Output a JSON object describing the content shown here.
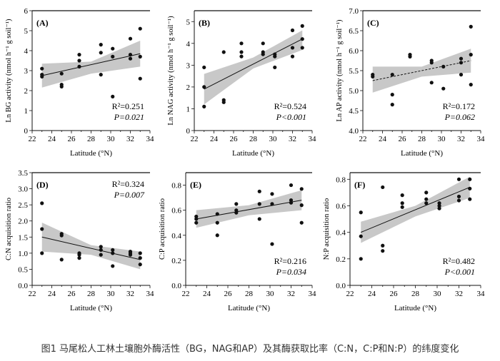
{
  "caption": "图1 马尾松人工林土壤胞外酶活性（BG，NAG和AP）及其酶获取比率（C:N，C:P和N:P）的纬度变化",
  "colors": {
    "points": "#111111",
    "band": "#c8c8c8",
    "line": "#111111"
  },
  "chart_data": [
    {
      "type": "scatter",
      "panel": "(A)",
      "ylabel": "Ln BG activity (nmol h⁻¹ g soil⁻¹)",
      "xlabel": "Latitude (°N)",
      "xlim": [
        22,
        34
      ],
      "ylim": [
        0,
        6
      ],
      "xticks": [
        22,
        24,
        26,
        28,
        30,
        32,
        34
      ],
      "yticks": [
        0,
        1,
        2,
        3,
        4,
        5,
        6
      ],
      "ytick_labels": [
        "0",
        "1",
        "2",
        "3",
        "4",
        "5",
        "6"
      ],
      "stat1": "R²=0.251",
      "stat2": "P=0.021",
      "stats_pos": "lower-right",
      "trend": {
        "line": [
          [
            23,
            2.75
          ],
          [
            33,
            3.85
          ]
        ],
        "band_upper": [
          [
            23,
            3.35
          ],
          [
            28,
            3.45
          ],
          [
            33,
            4.5
          ]
        ],
        "band_lower": [
          [
            23,
            2.15
          ],
          [
            28,
            2.85
          ],
          [
            33,
            3.2
          ]
        ],
        "dashed": false
      },
      "points": [
        [
          23,
          3.1
        ],
        [
          23,
          2.8
        ],
        [
          23,
          2.7
        ],
        [
          25,
          2.85
        ],
        [
          25,
          2.3
        ],
        [
          25,
          2.2
        ],
        [
          26.8,
          3.8
        ],
        [
          26.8,
          3.5
        ],
        [
          26.8,
          3.2
        ],
        [
          29,
          4.3
        ],
        [
          29,
          3.9
        ],
        [
          29,
          2.8
        ],
        [
          30.2,
          4.1
        ],
        [
          30.2,
          3.7
        ],
        [
          30.2,
          1.7
        ],
        [
          32,
          4.6
        ],
        [
          32,
          3.8
        ],
        [
          32,
          3.6
        ],
        [
          33,
          5.1
        ],
        [
          33,
          3.7
        ],
        [
          33,
          2.6
        ]
      ]
    },
    {
      "type": "scatter",
      "panel": "(B)",
      "ylabel": "Ln NAG activity (nmol h⁻¹ g soil⁻¹)",
      "xlabel": "Latitude (°N)",
      "xlim": [
        22,
        34
      ],
      "ylim": [
        0,
        5.5
      ],
      "xticks": [
        22,
        24,
        26,
        28,
        30,
        32,
        34
      ],
      "yticks": [
        0,
        1,
        2,
        3,
        4,
        5
      ],
      "ytick_labels": [
        "0",
        "1",
        "2",
        "3",
        "4",
        "5"
      ],
      "stat1": "R²=0.524",
      "stat2": "P<0.001",
      "stats_pos": "lower-right",
      "trend": {
        "line": [
          [
            23,
            1.9
          ],
          [
            33,
            4.2
          ]
        ],
        "band_upper": [
          [
            23,
            2.6
          ],
          [
            28,
            3.35
          ],
          [
            33,
            4.6
          ]
        ],
        "band_lower": [
          [
            23,
            1.2
          ],
          [
            28,
            2.85
          ],
          [
            33,
            3.7
          ]
        ],
        "dashed": false
      },
      "points": [
        [
          23,
          2.9
        ],
        [
          23,
          2.0
        ],
        [
          23,
          1.1
        ],
        [
          25,
          3.6
        ],
        [
          25,
          1.4
        ],
        [
          25,
          1.3
        ],
        [
          26.8,
          4.0
        ],
        [
          26.8,
          3.6
        ],
        [
          26.8,
          3.4
        ],
        [
          29,
          4.0
        ],
        [
          29,
          3.6
        ],
        [
          29,
          3.5
        ],
        [
          30.2,
          3.5
        ],
        [
          30.2,
          3.4
        ],
        [
          30.2,
          2.9
        ],
        [
          32,
          4.6
        ],
        [
          32,
          3.8
        ],
        [
          32,
          3.4
        ],
        [
          33,
          4.8
        ],
        [
          33,
          4.2
        ],
        [
          33,
          3.8
        ]
      ]
    },
    {
      "type": "scatter",
      "panel": "(C)",
      "ylabel": "Ln AP activity (nmol h⁻¹ g soil⁻¹)",
      "xlabel": "Latitude (°N)",
      "xlim": [
        22,
        34
      ],
      "ylim": [
        4,
        7
      ],
      "xticks": [
        22,
        24,
        26,
        28,
        30,
        32,
        34
      ],
      "yticks": [
        4,
        4.5,
        5,
        5.5,
        6,
        6.5,
        7
      ],
      "ytick_labels": [
        "4.0",
        "4.5",
        "5.0",
        "5.5",
        "6.0",
        "6.5",
        "7.0"
      ],
      "stat1": "R²=0.172",
      "stat2": "P=0.062",
      "stats_pos": "lower-right",
      "trend": {
        "line": [
          [
            23,
            5.25
          ],
          [
            33,
            5.75
          ]
        ],
        "band_upper": [
          [
            23,
            5.6
          ],
          [
            28,
            5.6
          ],
          [
            33,
            6.05
          ]
        ],
        "band_lower": [
          [
            23,
            4.95
          ],
          [
            28,
            5.35
          ],
          [
            33,
            5.45
          ]
        ],
        "dashed": true
      },
      "points": [
        [
          23,
          5.4
        ],
        [
          23,
          5.35
        ],
        [
          25,
          5.4
        ],
        [
          25,
          4.9
        ],
        [
          25,
          4.65
        ],
        [
          26.8,
          5.9
        ],
        [
          26.8,
          5.85
        ],
        [
          29,
          5.75
        ],
        [
          29,
          5.7
        ],
        [
          29,
          5.2
        ],
        [
          30.2,
          5.6
        ],
        [
          30.2,
          5.05
        ],
        [
          32,
          5.8
        ],
        [
          32,
          5.7
        ],
        [
          32,
          5.4
        ],
        [
          33,
          6.6
        ],
        [
          33,
          5.9
        ],
        [
          33,
          5.15
        ]
      ]
    },
    {
      "type": "scatter",
      "panel": "(D)",
      "ylabel": "C:N acquisition ratio",
      "xlabel": "Latitude (°N)",
      "xlim": [
        22,
        34
      ],
      "ylim": [
        0,
        3.5
      ],
      "xticks": [
        22,
        24,
        26,
        28,
        30,
        32,
        34
      ],
      "yticks": [
        0,
        0.5,
        1,
        1.5,
        2,
        2.5,
        3,
        3.5
      ],
      "ytick_labels": [
        "0.0",
        "0.5",
        "1.0",
        "1.5",
        "2.0",
        "2.5",
        "3.0",
        "3.5"
      ],
      "stat1": "R²=0.324",
      "stat2": "P=0.007",
      "stats_pos": "upper-right",
      "trend": {
        "line": [
          [
            23,
            1.5
          ],
          [
            33,
            0.8
          ]
        ],
        "band_upper": [
          [
            23,
            1.95
          ],
          [
            28,
            1.25
          ],
          [
            33,
            1.05
          ]
        ],
        "band_lower": [
          [
            23,
            1.05
          ],
          [
            28,
            0.95
          ],
          [
            33,
            0.5
          ]
        ],
        "dashed": false
      },
      "points": [
        [
          23,
          2.55
        ],
        [
          23,
          1.75
        ],
        [
          23,
          1.0
        ],
        [
          25,
          1.6
        ],
        [
          25,
          1.55
        ],
        [
          25,
          0.8
        ],
        [
          26.8,
          1.0
        ],
        [
          26.8,
          0.95
        ],
        [
          26.8,
          0.85
        ],
        [
          29,
          1.2
        ],
        [
          29,
          1.1
        ],
        [
          29,
          0.95
        ],
        [
          30.2,
          1.1
        ],
        [
          30.2,
          1.0
        ],
        [
          30.2,
          0.6
        ],
        [
          32,
          1.05
        ],
        [
          32,
          1.0
        ],
        [
          32,
          0.95
        ],
        [
          33,
          1.0
        ],
        [
          33,
          0.85
        ],
        [
          33,
          0.65
        ]
      ]
    },
    {
      "type": "scatter",
      "panel": "(E)",
      "ylabel": "C:P acquisition ratio",
      "xlabel": "Latitude (°N)",
      "xlim": [
        22,
        34
      ],
      "ylim": [
        0,
        0.9
      ],
      "xticks": [
        22,
        24,
        26,
        28,
        30,
        32,
        34
      ],
      "yticks": [
        0,
        0.2,
        0.4,
        0.6,
        0.8
      ],
      "ytick_labels": [
        "0.0",
        "0.2",
        "0.4",
        "0.6",
        "0.8"
      ],
      "stat1": "R²=0.216",
      "stat2": "P=0.034",
      "stats_pos": "lower-right",
      "trend": {
        "line": [
          [
            23,
            0.53
          ],
          [
            33,
            0.68
          ]
        ],
        "band_upper": [
          [
            23,
            0.6
          ],
          [
            28,
            0.64
          ],
          [
            33,
            0.76
          ]
        ],
        "band_lower": [
          [
            23,
            0.46
          ],
          [
            28,
            0.56
          ],
          [
            33,
            0.6
          ]
        ],
        "dashed": false
      },
      "points": [
        [
          23,
          0.55
        ],
        [
          23,
          0.53
        ],
        [
          23,
          0.5
        ],
        [
          25,
          0.57
        ],
        [
          25,
          0.5
        ],
        [
          25,
          0.4
        ],
        [
          26.8,
          0.65
        ],
        [
          26.8,
          0.6
        ],
        [
          26.8,
          0.58
        ],
        [
          29,
          0.75
        ],
        [
          29,
          0.65
        ],
        [
          29,
          0.53
        ],
        [
          30.2,
          0.73
        ],
        [
          30.2,
          0.65
        ],
        [
          30.2,
          0.33
        ],
        [
          32,
          0.8
        ],
        [
          32,
          0.68
        ],
        [
          32,
          0.66
        ],
        [
          33,
          0.77
        ],
        [
          33,
          0.64
        ],
        [
          33,
          0.5
        ]
      ]
    },
    {
      "type": "scatter",
      "panel": "(F)",
      "ylabel": "N:P acquisition ratio",
      "xlabel": "Latitude (°N)",
      "xlim": [
        22,
        34
      ],
      "ylim": [
        0,
        0.85
      ],
      "xticks": [
        22,
        24,
        26,
        28,
        30,
        32,
        34
      ],
      "yticks": [
        0,
        0.2,
        0.4,
        0.6,
        0.8
      ],
      "ytick_labels": [
        "0.0",
        "0.2",
        "0.4",
        "0.6",
        "0.8"
      ],
      "stat1": "R²=0.482",
      "stat2": "P<0.001",
      "stats_pos": "lower-right",
      "trend": {
        "line": [
          [
            23,
            0.4
          ],
          [
            33,
            0.74
          ]
        ],
        "band_upper": [
          [
            23,
            0.48
          ],
          [
            28,
            0.6
          ],
          [
            33,
            0.82
          ]
        ],
        "band_lower": [
          [
            23,
            0.32
          ],
          [
            28,
            0.52
          ],
          [
            33,
            0.66
          ]
        ],
        "dashed": false
      },
      "points": [
        [
          23,
          0.55
        ],
        [
          23,
          0.37
        ],
        [
          23,
          0.2
        ],
        [
          25,
          0.74
        ],
        [
          25,
          0.3
        ],
        [
          25,
          0.26
        ],
        [
          26.8,
          0.68
        ],
        [
          26.8,
          0.62
        ],
        [
          26.8,
          0.59
        ],
        [
          29,
          0.7
        ],
        [
          29,
          0.65
        ],
        [
          29,
          0.62
        ],
        [
          30.2,
          0.62
        ],
        [
          30.2,
          0.6
        ],
        [
          30.2,
          0.58
        ],
        [
          32,
          0.8
        ],
        [
          32,
          0.67
        ],
        [
          32,
          0.64
        ],
        [
          33,
          0.8
        ],
        [
          33,
          0.73
        ],
        [
          33,
          0.65
        ]
      ]
    }
  ]
}
